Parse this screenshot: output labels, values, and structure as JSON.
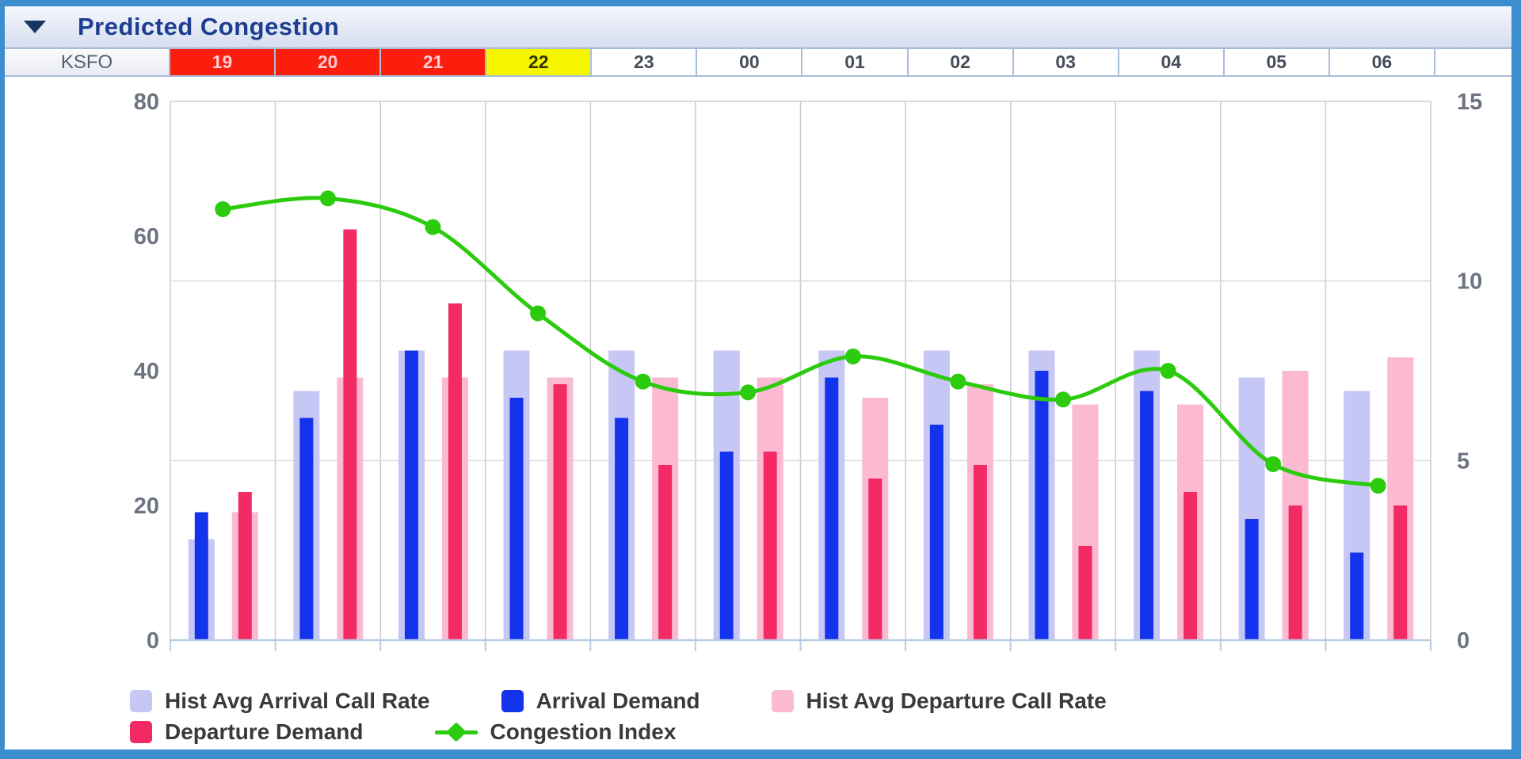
{
  "panel": {
    "title": "Predicted Congestion",
    "collapse_icon": "triangle-down-icon",
    "frame_color": "#3d8ecf"
  },
  "header": {
    "airport": "KSFO",
    "hours": [
      {
        "label": "19",
        "state": "red"
      },
      {
        "label": "20",
        "state": "red"
      },
      {
        "label": "21",
        "state": "red"
      },
      {
        "label": "22",
        "state": "yellow"
      },
      {
        "label": "23",
        "state": "normal"
      },
      {
        "label": "00",
        "state": "normal"
      },
      {
        "label": "01",
        "state": "normal"
      },
      {
        "label": "02",
        "state": "normal"
      },
      {
        "label": "03",
        "state": "normal"
      },
      {
        "label": "04",
        "state": "normal"
      },
      {
        "label": "05",
        "state": "normal"
      },
      {
        "label": "06",
        "state": "normal"
      }
    ],
    "alert_colors": {
      "red": "#fb1e0c",
      "yellow": "#f6f600"
    }
  },
  "chart_data": {
    "type": "bar+line",
    "categories": [
      "19",
      "20",
      "21",
      "22",
      "23",
      "00",
      "01",
      "02",
      "03",
      "04",
      "05",
      "06"
    ],
    "series": [
      {
        "name": "Hist Avg Arrival Call Rate",
        "type": "bar",
        "axis": "left",
        "color": "#c6c7f5",
        "values": [
          15,
          37,
          43,
          43,
          43,
          43,
          43,
          43,
          43,
          43,
          39,
          37
        ]
      },
      {
        "name": "Arrival Demand",
        "type": "bar",
        "axis": "left",
        "color": "#1433ec",
        "values": [
          19,
          33,
          43,
          36,
          33,
          28,
          39,
          32,
          40,
          37,
          18,
          13
        ]
      },
      {
        "name": "Hist Avg Departure Call Rate",
        "type": "bar",
        "axis": "left",
        "color": "#fbbad2",
        "values": [
          19,
          39,
          39,
          39,
          39,
          39,
          36,
          38,
          35,
          35,
          40,
          42
        ]
      },
      {
        "name": "Departure Demand",
        "type": "bar",
        "axis": "left",
        "color": "#f42a64",
        "values": [
          22,
          61,
          50,
          38,
          26,
          28,
          24,
          26,
          14,
          22,
          20,
          20
        ]
      },
      {
        "name": "Congestion Index",
        "type": "line",
        "axis": "right",
        "color": "#2ccb0e",
        "values": [
          12,
          12.3,
          11.5,
          9.1,
          7.2,
          6.9,
          7.9,
          7.2,
          6.7,
          7.5,
          4.9,
          4.3
        ]
      }
    ],
    "left_axis": {
      "ticks": [
        80,
        60,
        40,
        20,
        0
      ],
      "range": [
        0,
        80
      ]
    },
    "right_axis": {
      "ticks": [
        15,
        10,
        5,
        0
      ],
      "range": [
        0,
        15
      ]
    },
    "gridlines": {
      "horizontal_at_right_axis_values": [
        10,
        5
      ],
      "vertical": "hour-column-boundaries"
    },
    "legend_position": "bottom-left"
  },
  "legend": {
    "rows": [
      [
        {
          "label": "Hist Avg Arrival Call Rate",
          "marker": "square",
          "color": "#c6c7f5"
        },
        {
          "label": "Arrival Demand",
          "marker": "square",
          "color": "#1433ec"
        },
        {
          "label": "Hist Avg Departure Call Rate",
          "marker": "square",
          "color": "#fbbad2"
        }
      ],
      [
        {
          "label": "Departure Demand",
          "marker": "square",
          "color": "#f42a64"
        },
        {
          "label": "Congestion Index",
          "marker": "line-diamond",
          "color": "#2ccb0e"
        }
      ]
    ]
  }
}
